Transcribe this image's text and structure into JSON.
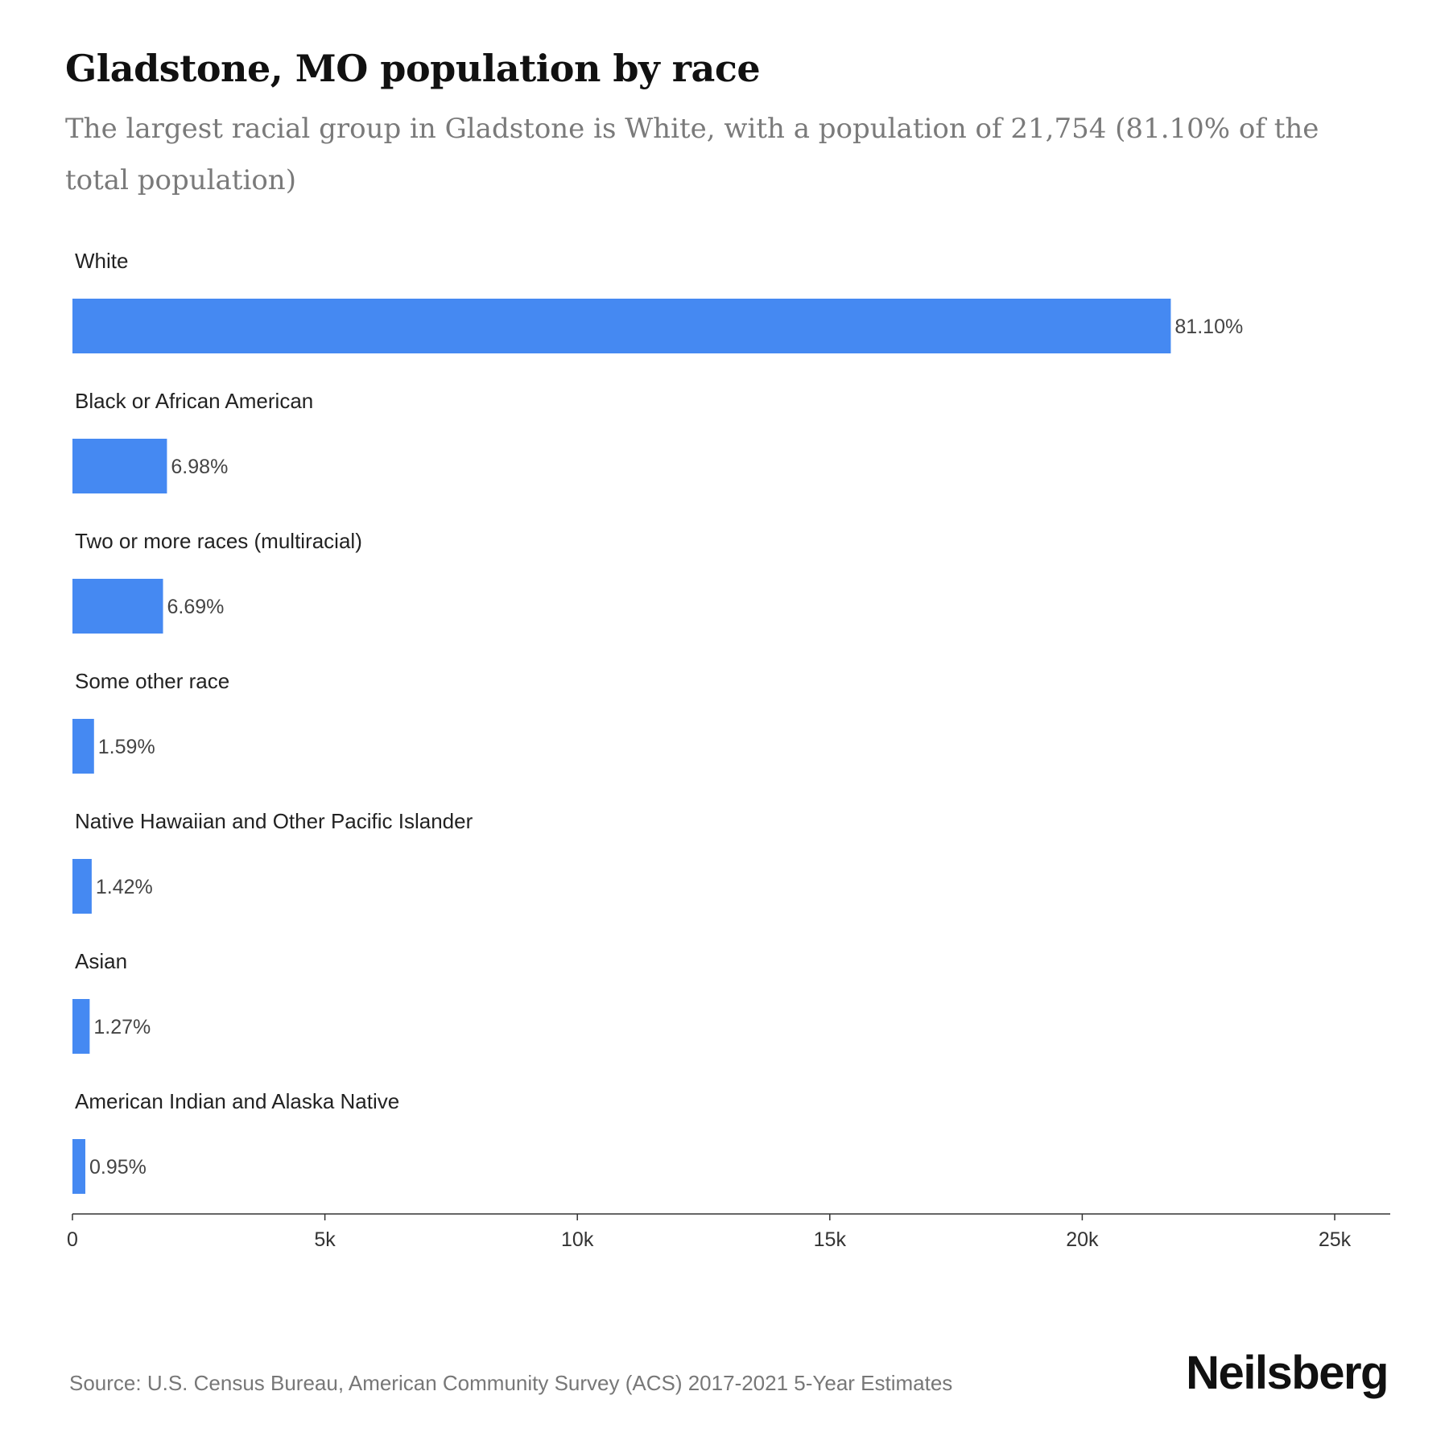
{
  "header": {
    "title": "Gladstone, MO population by race",
    "subtitle": "The largest racial group in Gladstone is White, with a population of 21,754 (81.10% of the total population)"
  },
  "footer": {
    "source": "Source: U.S. Census Bureau, American Community Survey (ACS) 2017-2021 5-Year Estimates",
    "brand": "Neilsberg"
  },
  "chart_data": {
    "type": "bar",
    "orientation": "horizontal",
    "categories": [
      "White",
      "Black or African American",
      "Two or more races (multiracial)",
      "Some other race",
      "Native Hawaiian and Other Pacific Islander",
      "Asian",
      "American Indian and Alaska Native"
    ],
    "values": [
      21754,
      1872,
      1794,
      427,
      381,
      341,
      255
    ],
    "data_labels": [
      "81.10%",
      "6.98%",
      "6.69%",
      "1.59%",
      "1.42%",
      "1.27%",
      "0.95%"
    ],
    "xlim": [
      0,
      26100
    ],
    "x_ticks": [
      0,
      5000,
      10000,
      15000,
      20000,
      25000
    ],
    "x_tick_labels": [
      "0",
      "5k",
      "10k",
      "15k",
      "20k",
      "25k"
    ],
    "bar_color": "#4589f2",
    "grid": false
  }
}
